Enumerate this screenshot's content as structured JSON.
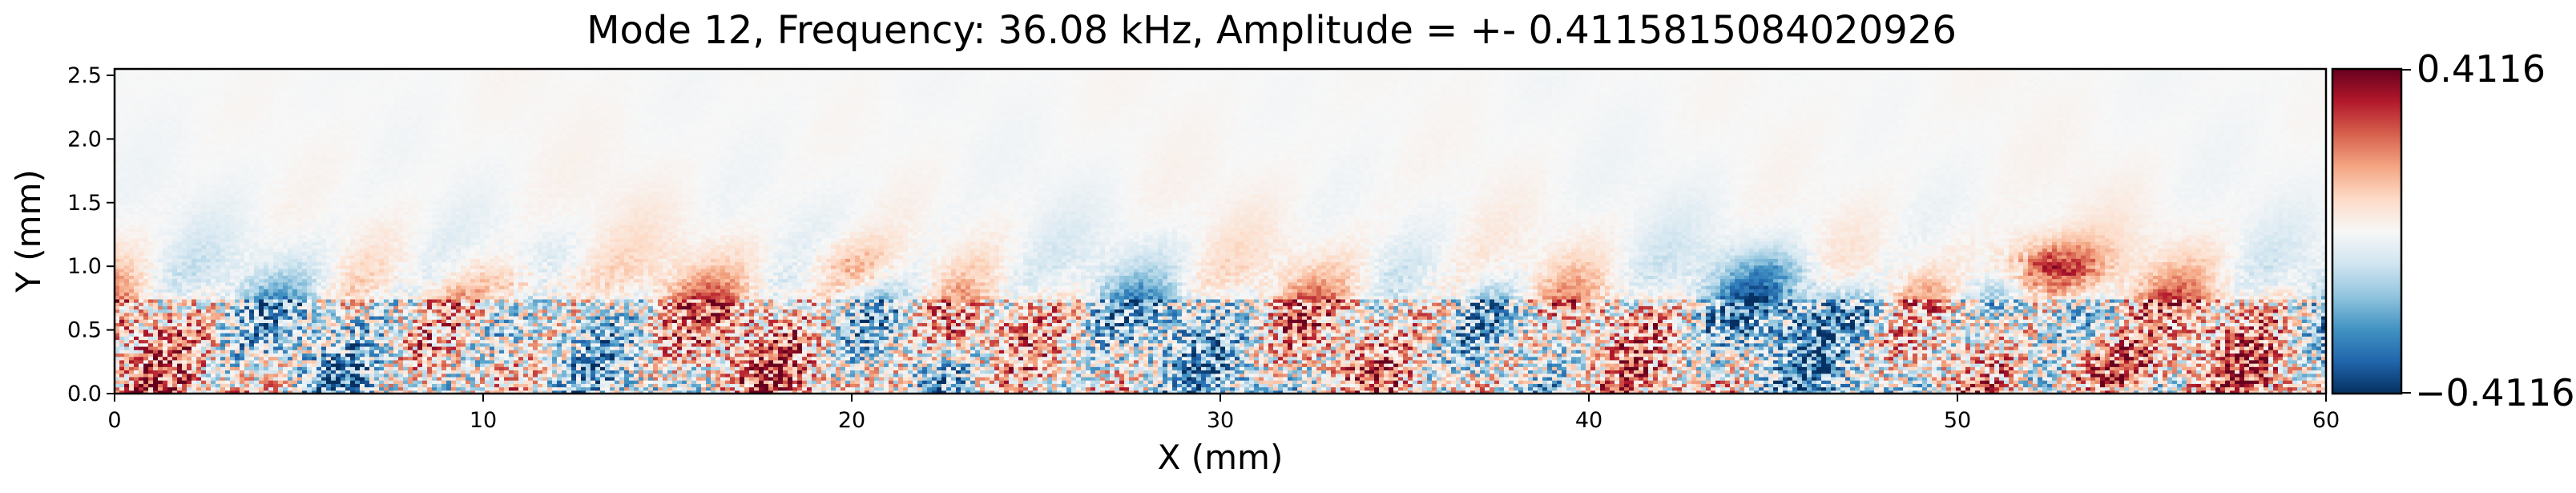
{
  "chart_data": {
    "type": "heatmap",
    "title": "Mode 12, Frequency: 36.08 kHz, Amplitude = +- 0.4115815084020926",
    "xlabel": "X (mm)",
    "ylabel": "Y (mm)",
    "xlim": [
      0,
      60
    ],
    "ylim": [
      0,
      2.55
    ],
    "x_ticks": [
      "0",
      "10",
      "20",
      "30",
      "40",
      "50",
      "60"
    ],
    "y_ticks": [
      "0.0",
      "0.5",
      "1.0",
      "1.5",
      "2.0",
      "2.5"
    ],
    "colormap": "RdBu_r",
    "colorbar": {
      "vmin": -0.4116,
      "vmax": 0.4116,
      "tick_labels": [
        "0.4116",
        "−0.4116"
      ],
      "colors": [
        "#053061",
        "#2166ac",
        "#4393c3",
        "#92c5de",
        "#d1e5f0",
        "#f7f7f7",
        "#fddbc7",
        "#f4a582",
        "#d6604d",
        "#b2182b",
        "#67001f"
      ]
    },
    "field_description_hotspots": [
      {
        "x": 11,
        "y": 0.8,
        "value": 0.22
      },
      {
        "x": 20,
        "y": 1.0,
        "value": 0.15
      },
      {
        "x": 23,
        "y": 0.5,
        "value": 0.18
      },
      {
        "x": 38,
        "y": 0.55,
        "value": -0.14
      },
      {
        "x": 45,
        "y": 0.9,
        "value": -0.15
      },
      {
        "x": 47,
        "y": 0.6,
        "value": -0.18
      },
      {
        "x": 52.5,
        "y": 1.0,
        "value": 0.3
      },
      {
        "x": 54,
        "y": 0.2,
        "value": 0.35
      }
    ]
  }
}
